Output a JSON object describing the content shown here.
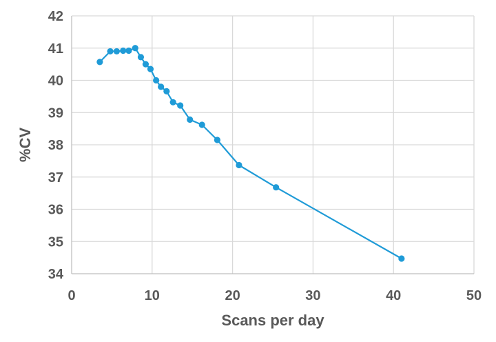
{
  "chart_data": {
    "type": "line",
    "title": "",
    "xlabel": "Scans per day",
    "ylabel": "%CV",
    "xlim": [
      0,
      50
    ],
    "ylim": [
      34,
      42
    ],
    "x_ticks": [
      0,
      10,
      20,
      30,
      40,
      50
    ],
    "y_ticks": [
      34,
      35,
      36,
      37,
      38,
      39,
      40,
      41,
      42
    ],
    "grid": true,
    "legend": "none",
    "series": [
      {
        "color": "#1f9bd7",
        "marker": "circle",
        "x": [
          3.5,
          4.8,
          5.6,
          6.4,
          7.1,
          7.9,
          8.6,
          9.2,
          9.8,
          10.5,
          11.1,
          11.8,
          12.6,
          13.5,
          14.7,
          16.2,
          18.1,
          20.8,
          25.4,
          41.0
        ],
        "y": [
          40.57,
          40.9,
          40.9,
          40.92,
          40.92,
          41.0,
          40.72,
          40.5,
          40.35,
          40.0,
          39.8,
          39.66,
          39.32,
          39.22,
          38.78,
          38.62,
          38.15,
          37.37,
          36.68,
          34.47
        ]
      }
    ]
  }
}
